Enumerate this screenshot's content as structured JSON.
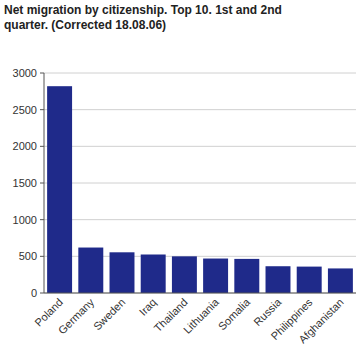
{
  "chart_data": {
    "type": "bar",
    "title": "Net migration by citizenship.  Top 10. 1st and 2nd quarter. (Corrected 18.08.06)",
    "categories": [
      "Poland",
      "Germany",
      "Sweden",
      "Iraq",
      "Thailand",
      "Lithuania",
      "Somalia",
      "Russia",
      "Philippines",
      "Afghanistan"
    ],
    "values": [
      2820,
      620,
      555,
      525,
      500,
      470,
      465,
      365,
      360,
      335
    ],
    "color": "#1f2a8a",
    "ylim": [
      0,
      3000
    ],
    "yticks": [
      0,
      500,
      1000,
      1500,
      2000,
      2500,
      3000
    ],
    "grid": true
  }
}
